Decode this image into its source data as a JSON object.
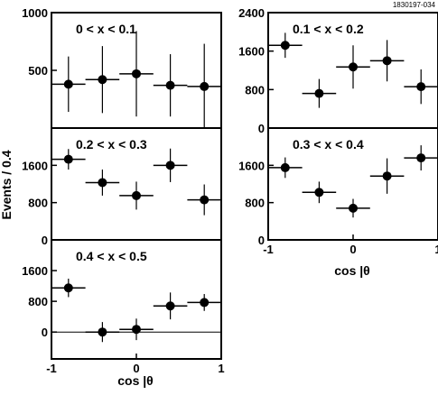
{
  "figure_id": "1830197-034",
  "shared_ylabel": "Events / 0.4",
  "xlabel": "cos |θ",
  "chart_data": [
    {
      "type": "scatter",
      "title": "0 < x < 0.1",
      "x": [
        -0.8,
        -0.4,
        0.0,
        0.4,
        0.8
      ],
      "xerr": 0.2,
      "y": [
        380,
        420,
        470,
        370,
        360
      ],
      "yerr": [
        240,
        290,
        370,
        270,
        370
      ],
      "xlim": [
        -1,
        1
      ],
      "ylim": [
        0,
        1000
      ],
      "yticks": [
        500,
        1000
      ],
      "ytick_labels": [
        "500",
        "1000"
      ],
      "xticks": [],
      "xtick_labels": []
    },
    {
      "type": "scatter",
      "title": "0.1 < x < 0.2",
      "x": [
        -0.8,
        -0.4,
        0.0,
        0.4,
        0.8
      ],
      "xerr": 0.2,
      "y": [
        1720,
        720,
        1270,
        1400,
        860
      ],
      "yerr": [
        260,
        300,
        450,
        430,
        360
      ],
      "xlim": [
        -1,
        1
      ],
      "ylim": [
        0,
        2400
      ],
      "yticks": [
        0,
        800,
        1600,
        2400
      ],
      "ytick_labels": [
        "0",
        "800",
        "1600",
        "2400"
      ],
      "xticks": [],
      "xtick_labels": []
    },
    {
      "type": "scatter",
      "title": "0.2 < x < 0.3",
      "x": [
        -0.8,
        -0.4,
        0.0,
        0.4,
        0.8
      ],
      "xerr": 0.2,
      "y": [
        1730,
        1230,
        950,
        1600,
        860
      ],
      "yerr": [
        220,
        280,
        300,
        360,
        330
      ],
      "xlim": [
        -1,
        1
      ],
      "ylim": [
        0,
        2400
      ],
      "yticks": [
        0,
        800,
        1600
      ],
      "ytick_labels": [
        "0",
        "800",
        "1600"
      ],
      "xticks": [],
      "xtick_labels": []
    },
    {
      "type": "scatter",
      "title": "0.3 < x < 0.4",
      "x": [
        -0.8,
        -0.4,
        0.0,
        0.4,
        0.8
      ],
      "xerr": 0.2,
      "y": [
        1550,
        1020,
        680,
        1370,
        1760
      ],
      "yerr": [
        220,
        230,
        200,
        380,
        270
      ],
      "xlim": [
        -1,
        1
      ],
      "ylim": [
        0,
        2400
      ],
      "yticks": [
        0,
        800,
        1600
      ],
      "ytick_labels": [
        "0",
        "800",
        "1600"
      ],
      "xticks": [
        -1,
        0,
        1
      ],
      "xtick_labels": [
        "-1",
        "0",
        "1"
      ]
    },
    {
      "type": "scatter",
      "title": "0.4 < x < 0.5",
      "x": [
        -0.8,
        -0.4,
        0.0,
        0.4,
        0.8
      ],
      "xerr": 0.2,
      "y": [
        1150,
        0,
        70,
        680,
        770
      ],
      "yerr": [
        240,
        260,
        280,
        350,
        220
      ],
      "xlim": [
        -1,
        1
      ],
      "ylim": [
        -700,
        2400
      ],
      "yticks": [
        0,
        800,
        1600
      ],
      "ytick_labels": [
        "0",
        "800",
        "1600"
      ],
      "zero_line": true,
      "xticks": [
        -1,
        0,
        1
      ],
      "xtick_labels": [
        "-1",
        "0",
        "1"
      ]
    }
  ]
}
